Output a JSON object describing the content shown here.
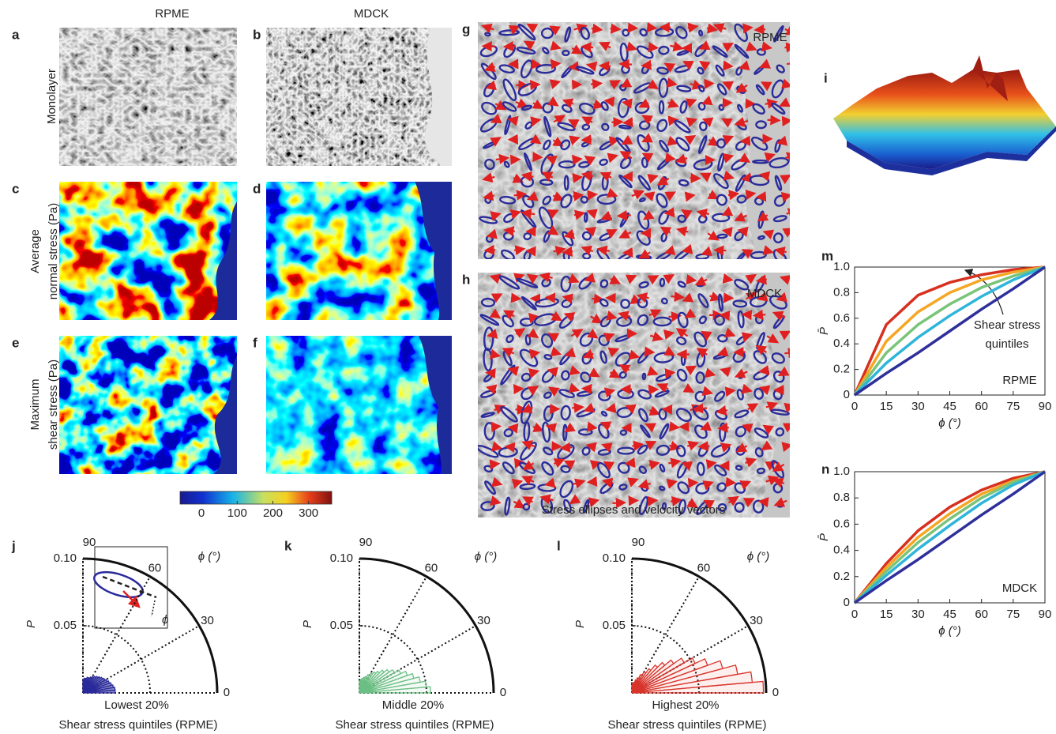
{
  "header": {
    "columns": [
      "RPME",
      "MDCK"
    ]
  },
  "panel_labels": [
    "a",
    "b",
    "c",
    "d",
    "e",
    "f",
    "g",
    "h",
    "i"
  ],
  "row_labels": [
    [
      "Monolayer"
    ],
    [
      "Average",
      "normal stress (Pa)"
    ],
    [
      "Maximum",
      "shear stress (Pa)"
    ]
  ],
  "colorbar": {
    "lim": [
      -60,
      365
    ],
    "ticks": [
      0,
      100,
      200,
      300
    ]
  },
  "vector_panels": {
    "g_label": "RPME",
    "h_label": "MDCK",
    "caption": "Stress ellipses and velocity vectors"
  },
  "chart_data": [
    {
      "type": "polar_histogram",
      "panel": "j",
      "color": "#2a2a9a",
      "bins": [
        0,
        5,
        10,
        15,
        20,
        25,
        30,
        35,
        40,
        45,
        50,
        55,
        60,
        65,
        70,
        75,
        80,
        85,
        90
      ],
      "values": [
        0.024,
        0.024,
        0.023,
        0.022,
        0.021,
        0.02,
        0.019,
        0.018,
        0.017,
        0.016,
        0.015,
        0.014,
        0.013,
        0.012,
        0.012,
        0.011,
        0.011,
        0.01
      ],
      "rlim": [
        0,
        0.1
      ],
      "rticks": [
        0.05,
        {
          "value": 0.1,
          "label": "0.10"
        }
      ],
      "angle_ticks": [
        0,
        30,
        60,
        90
      ],
      "angle_label": "ϕ (°)",
      "rlabel": "P",
      "subtitle": "Lowest 20%",
      "caption": "Shear stress quintiles (RPME)"
    },
    {
      "type": "polar_histogram",
      "panel": "k",
      "color": "#6cbf84",
      "bins": [
        0,
        5,
        10,
        15,
        20,
        25,
        30,
        35,
        40,
        45,
        50,
        55,
        60,
        65,
        70,
        75,
        80,
        85,
        90
      ],
      "values": [
        0.053,
        0.05,
        0.046,
        0.042,
        0.038,
        0.034,
        0.03,
        0.027,
        0.024,
        0.021,
        0.019,
        0.017,
        0.015,
        0.013,
        0.012,
        0.011,
        0.01,
        0.009
      ],
      "rlim": [
        0,
        0.1
      ],
      "rticks": [
        0.05,
        {
          "value": 0.1,
          "label": "0.10"
        }
      ],
      "angle_ticks": [
        0,
        30,
        60,
        90
      ],
      "angle_label": "ϕ (°)",
      "rlabel": "P",
      "subtitle": "Middle 20%",
      "caption": "Shear stress quintiles (RPME)"
    },
    {
      "type": "polar_histogram",
      "panel": "l",
      "color": "#d9342b",
      "bins": [
        0,
        5,
        10,
        15,
        20,
        25,
        30,
        35,
        40,
        45,
        50,
        55,
        60,
        65,
        70,
        75,
        80,
        85,
        90
      ],
      "values": [
        0.098,
        0.09,
        0.08,
        0.07,
        0.06,
        0.052,
        0.045,
        0.038,
        0.032,
        0.027,
        0.022,
        0.018,
        0.015,
        0.012,
        0.01,
        0.008,
        0.007,
        0.006
      ],
      "rlim": [
        0,
        0.1
      ],
      "rticks": [
        0.05,
        {
          "value": 0.1,
          "label": "0.10"
        }
      ],
      "angle_ticks": [
        0,
        30,
        60,
        90
      ],
      "angle_label": "ϕ (°)",
      "rlabel": "P",
      "subtitle": "Highest 20%",
      "caption": "Shear stress quintiles (RPME)"
    },
    {
      "type": "line",
      "panel": "m",
      "x": [
        0,
        15,
        30,
        45,
        60,
        75,
        90
      ],
      "series": [
        {
          "color": "#d7301f",
          "values": [
            0,
            0.55,
            0.78,
            0.88,
            0.94,
            0.98,
            1
          ]
        },
        {
          "color": "#f5a623",
          "values": [
            0,
            0.42,
            0.65,
            0.8,
            0.9,
            0.96,
            1
          ]
        },
        {
          "color": "#7ac47a",
          "values": [
            0,
            0.33,
            0.55,
            0.71,
            0.84,
            0.93,
            1
          ]
        },
        {
          "color": "#2fb5d9",
          "values": [
            0,
            0.25,
            0.45,
            0.62,
            0.77,
            0.9,
            1
          ]
        },
        {
          "color": "#2e2f9a",
          "values": [
            0,
            0.17,
            0.33,
            0.5,
            0.67,
            0.83,
            1
          ]
        }
      ],
      "xlim": [
        0,
        90
      ],
      "ylim": [
        0,
        1
      ],
      "xticks": [
        0,
        15,
        30,
        45,
        60,
        75,
        90
      ],
      "yticks": [
        0,
        0.2,
        0.4,
        0.6,
        0.8,
        {
          "value": 1,
          "label": "1.0"
        }
      ],
      "xlabel": "ϕ (°)",
      "ylabel": "P̄",
      "annotation": [
        "Shear stress",
        "quintiles"
      ],
      "label": "RPME"
    },
    {
      "type": "line",
      "panel": "n",
      "x": [
        0,
        15,
        30,
        45,
        60,
        75,
        90
      ],
      "series": [
        {
          "color": "#d7301f",
          "values": [
            0,
            0.3,
            0.55,
            0.73,
            0.86,
            0.95,
            1
          ]
        },
        {
          "color": "#f5a623",
          "values": [
            0,
            0.27,
            0.5,
            0.68,
            0.83,
            0.93,
            1
          ]
        },
        {
          "color": "#7ac47a",
          "values": [
            0,
            0.24,
            0.46,
            0.64,
            0.8,
            0.92,
            1
          ]
        },
        {
          "color": "#2fb5d9",
          "values": [
            0,
            0.21,
            0.41,
            0.59,
            0.76,
            0.9,
            1
          ]
        },
        {
          "color": "#2e2f9a",
          "values": [
            0,
            0.17,
            0.33,
            0.5,
            0.67,
            0.83,
            1
          ]
        }
      ],
      "xlim": [
        0,
        90
      ],
      "ylim": [
        0,
        1
      ],
      "xticks": [
        0,
        15,
        30,
        45,
        60,
        75,
        90
      ],
      "yticks": [
        0,
        0.2,
        0.4,
        0.6,
        0.8,
        {
          "value": 1,
          "label": "1.0"
        }
      ],
      "xlabel": "ϕ (°)",
      "ylabel": "P̄",
      "label": "MDCK"
    }
  ]
}
